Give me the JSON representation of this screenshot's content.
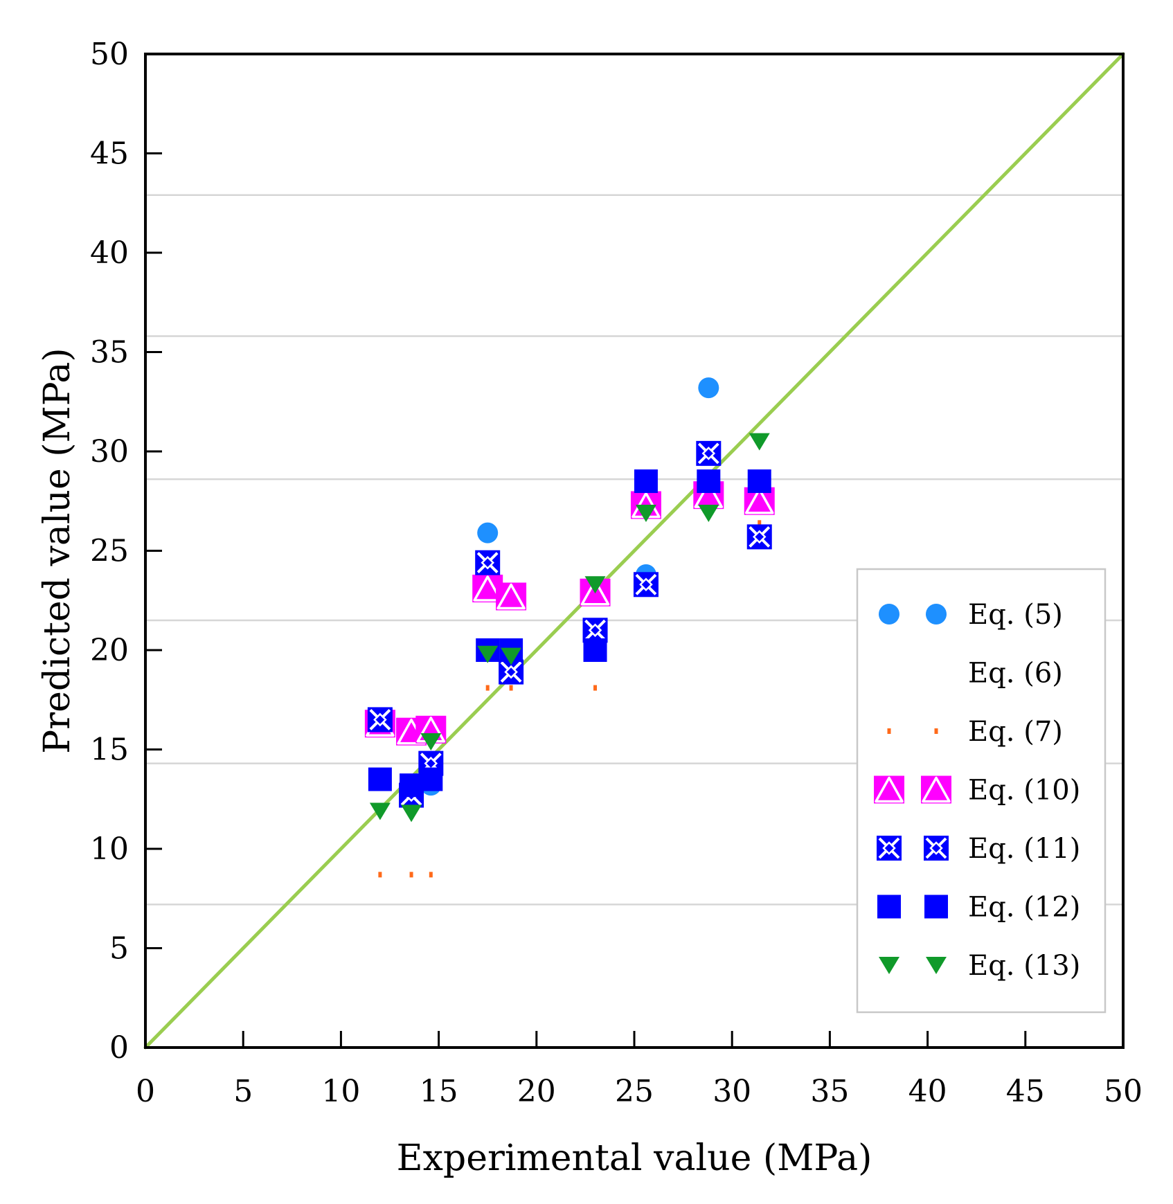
{
  "chart_data": {
    "type": "scatter",
    "title": "",
    "xlabel": "Experimental value (MPa)",
    "ylabel": "Predicted value (MPa)",
    "xlim": [
      0,
      50
    ],
    "ylim": [
      0,
      50
    ],
    "xticks": [
      "0",
      "5",
      "10",
      "15",
      "20",
      "25",
      "30",
      "35",
      "40",
      "45",
      "50"
    ],
    "yticks": [
      "0",
      "5",
      "10",
      "15",
      "20",
      "25",
      "30",
      "35",
      "40",
      "45",
      "50"
    ],
    "grid": "horizontal light grey lines",
    "legend_position": "bottom-right",
    "reference_line": {
      "x": [
        0,
        50
      ],
      "y": [
        0,
        50
      ],
      "color": "#9ACD50"
    },
    "series": [
      {
        "name": "Eq. (5)",
        "marker": "circle",
        "color": "#1E90FF",
        "points": [
          [
            12.0,
            16.4
          ],
          [
            13.6,
            12.8
          ],
          [
            14.6,
            13.2
          ],
          [
            17.5,
            25.9
          ],
          [
            18.7,
            19.0
          ],
          [
            23.0,
            22.9
          ],
          [
            25.6,
            23.8
          ],
          [
            28.8,
            33.2
          ],
          [
            31.4,
            25.7
          ]
        ]
      },
      {
        "name": "Eq. (6)",
        "marker": "none",
        "color": "#ffffff",
        "points": []
      },
      {
        "name": "Eq. (7)",
        "marker": "dot",
        "color": "#FF6A1A",
        "points": [
          [
            12.0,
            8.7
          ],
          [
            13.6,
            8.7
          ],
          [
            14.6,
            8.7
          ],
          [
            17.5,
            18.1
          ],
          [
            18.7,
            18.1
          ],
          [
            23.0,
            18.1
          ],
          [
            31.4,
            26.4
          ]
        ]
      },
      {
        "name": "Eq. (10)",
        "marker": "triangle-up-in-square",
        "color": "#FF00FF",
        "points": [
          [
            12.0,
            16.3
          ],
          [
            13.6,
            15.9
          ],
          [
            14.6,
            16.0
          ],
          [
            17.5,
            23.1
          ],
          [
            18.7,
            22.7
          ],
          [
            23.0,
            22.9
          ],
          [
            25.6,
            27.3
          ],
          [
            28.8,
            27.8
          ],
          [
            31.4,
            27.5
          ]
        ]
      },
      {
        "name": "Eq. (11)",
        "marker": "x-in-square",
        "color": "#0000FF",
        "points": [
          [
            12.0,
            16.5
          ],
          [
            13.6,
            12.7
          ],
          [
            14.6,
            14.3
          ],
          [
            17.5,
            24.4
          ],
          [
            18.7,
            18.9
          ],
          [
            23.0,
            21.0
          ],
          [
            25.6,
            23.3
          ],
          [
            28.8,
            29.9
          ],
          [
            31.4,
            25.7
          ]
        ]
      },
      {
        "name": "Eq. (12)",
        "marker": "square",
        "color": "#0000FF",
        "points": [
          [
            12.0,
            13.5
          ],
          [
            13.6,
            13.2
          ],
          [
            14.6,
            13.5
          ],
          [
            17.5,
            20.0
          ],
          [
            18.7,
            20.0
          ],
          [
            23.0,
            20.0
          ],
          [
            25.6,
            28.5
          ],
          [
            28.8,
            28.5
          ],
          [
            31.4,
            28.5
          ]
        ]
      },
      {
        "name": "Eq. (13)",
        "marker": "triangle-down",
        "color": "#109A2A",
        "points": [
          [
            12.0,
            11.9
          ],
          [
            13.6,
            11.8
          ],
          [
            14.6,
            15.4
          ],
          [
            17.5,
            19.8
          ],
          [
            18.7,
            19.7
          ],
          [
            23.0,
            23.3
          ],
          [
            25.6,
            26.9
          ],
          [
            28.8,
            26.9
          ],
          [
            31.4,
            30.5
          ]
        ]
      }
    ]
  }
}
